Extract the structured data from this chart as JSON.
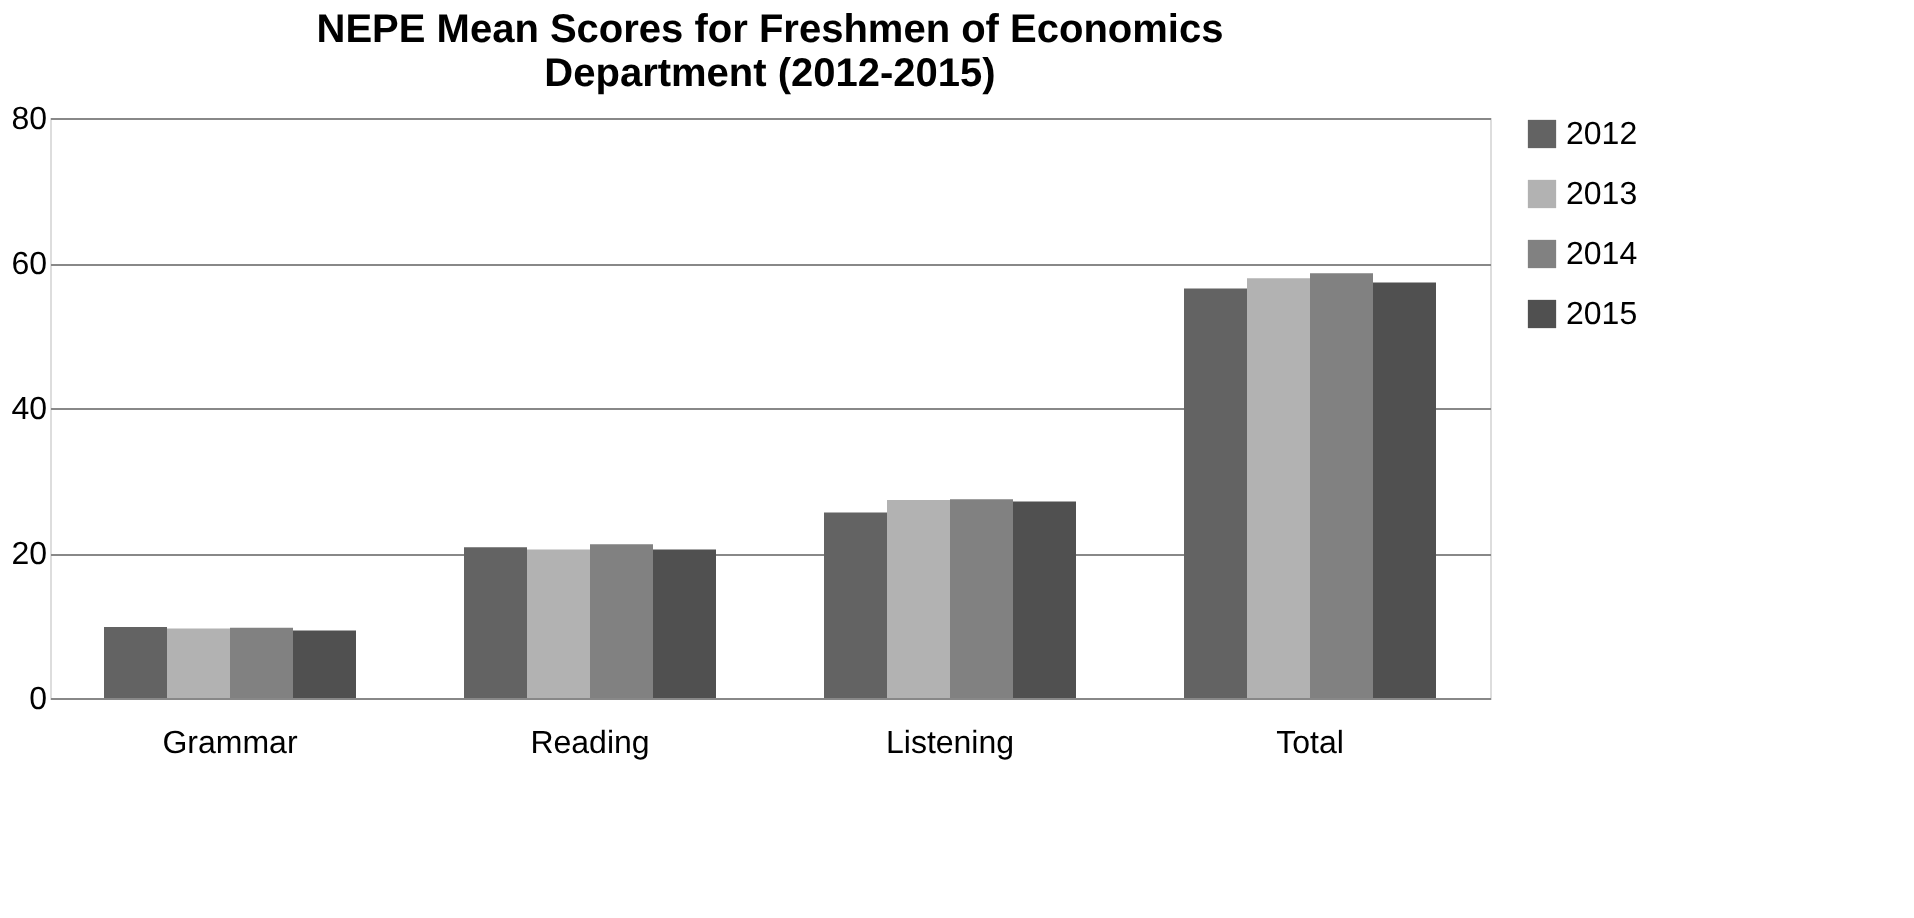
{
  "chart_data": {
    "type": "bar",
    "title": "NEPE Mean Scores for Freshmen of Economics Department (2012-2015)",
    "categories": [
      "Grammar",
      "Reading",
      "Listening",
      "Total"
    ],
    "series": [
      {
        "name": "2012",
        "color": "#636363",
        "values": [
          9.8,
          20.8,
          25.6,
          56.5
        ]
      },
      {
        "name": "2013",
        "color": "#b2b2b2",
        "values": [
          9.6,
          20.5,
          27.3,
          57.9
        ]
      },
      {
        "name": "2014",
        "color": "#818181",
        "values": [
          9.7,
          21.2,
          27.4,
          58.6
        ]
      },
      {
        "name": "2015",
        "color": "#505050",
        "values": [
          9.3,
          20.5,
          27.1,
          57.3
        ]
      }
    ],
    "ylim": [
      0,
      80
    ],
    "yticks": [
      0,
      20,
      40,
      60,
      80
    ],
    "grid": "y",
    "legend": "right"
  }
}
